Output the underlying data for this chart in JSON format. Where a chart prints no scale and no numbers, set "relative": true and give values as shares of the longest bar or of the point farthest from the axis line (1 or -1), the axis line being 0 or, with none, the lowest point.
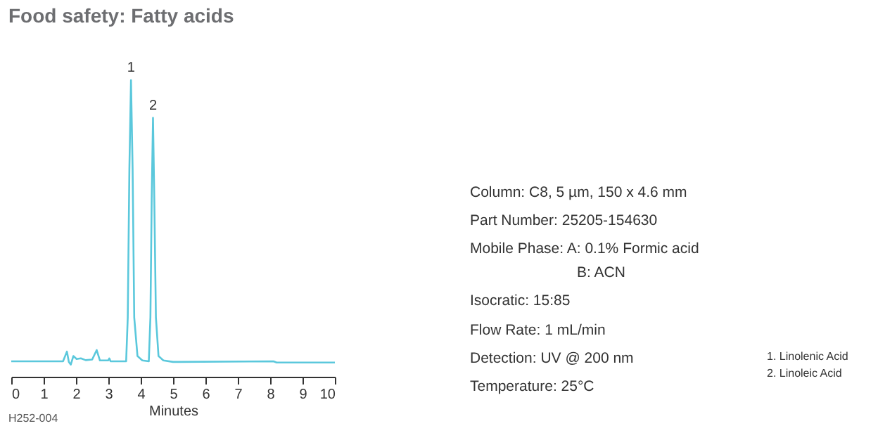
{
  "chart_data": {
    "type": "line",
    "title": "Food safety: Fatty acids",
    "xlabel": "Minutes",
    "relative": true,
    "x": [
      0,
      1.6,
      1.72,
      1.78,
      1.84,
      1.92,
      2.02,
      2.15,
      2.3,
      2.5,
      2.64,
      2.74,
      3.0,
      3.03,
      3.07,
      3.55,
      3.6,
      3.65,
      3.7,
      3.75,
      3.8,
      3.9,
      4.05,
      4.25,
      4.3,
      4.34,
      4.38,
      4.42,
      4.47,
      4.55,
      4.7,
      5.0,
      8.1,
      8.2,
      10
    ],
    "series": [
      {
        "color": "#5bc8dc",
        "values": [
          0.052,
          0.052,
          0.085,
          0.05,
          0.041,
          0.07,
          0.06,
          0.062,
          0.056,
          0.058,
          0.09,
          0.055,
          0.055,
          0.062,
          0.052,
          0.052,
          0.2,
          0.7,
          1.0,
          0.7,
          0.2,
          0.07,
          0.055,
          0.052,
          0.2,
          0.6,
          0.873,
          0.6,
          0.2,
          0.07,
          0.055,
          0.05,
          0.052,
          0.048,
          0.048
        ]
      }
    ],
    "xlim": [
      0,
      10
    ],
    "xticks": [
      0,
      1,
      2,
      3,
      4,
      5,
      6,
      7,
      8,
      9,
      10
    ],
    "grid": false,
    "marker": "none",
    "line_style": "solid",
    "annotations": [
      {
        "text": "1",
        "x": 3.7,
        "y": 1.0
      },
      {
        "text": "2",
        "x": 4.38,
        "y": 0.873
      },
      "H252-004",
      "Column: C8, 5 µm, 150 x 4.6 mm",
      "Part Number: 25205-154630",
      "Mobile Phase: A: 0.1% Formic acid",
      "B: ACN",
      "Isocratic: 15:85",
      "Flow Rate: 1 mL/min",
      "Detection: UV @ 200 nm",
      "Temperature: 25°C",
      "1. Linolenic Acid",
      "2. Linoleic Acid"
    ]
  }
}
